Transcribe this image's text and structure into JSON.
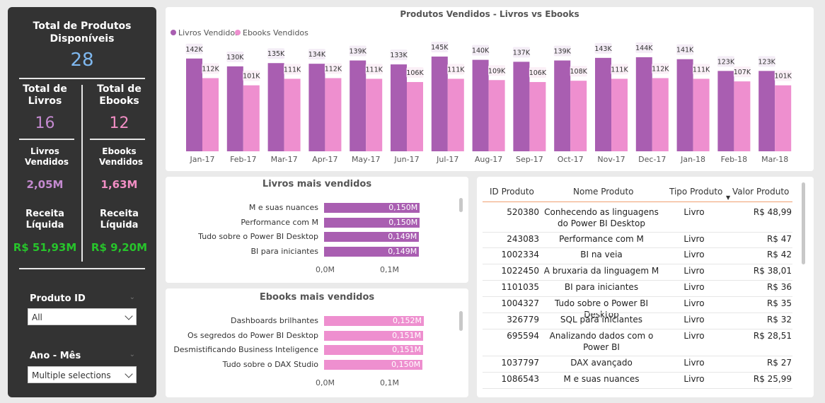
{
  "sidebar": {
    "total_title": "Total de Produtos Disponíveis",
    "total_value": "28",
    "livros_title": "Total de Livros",
    "livros_value": "16",
    "ebooks_title": "Total de Ebooks",
    "ebooks_value": "12",
    "livros_vendidos_title": "Livros Vendidos",
    "livros_vendidos_value": "2,05M",
    "ebooks_vendidos_title": "Ebooks Vendidos",
    "ebooks_vendidos_value": "1,63M",
    "receita1_title": "Receita Líquida",
    "receita1_value": "R$ 51,93M",
    "receita2_title": "Receita Líquida",
    "receita2_value": "R$ 9,20M",
    "filter1_label": "Produto ID",
    "filter1_value": "All",
    "filter2_label": "Ano - Mês",
    "filter2_value": "Multiple selections"
  },
  "colors": {
    "livros": "#a95eb1",
    "ebooks": "#ee8fcf",
    "total_value": "#7fb8ef",
    "livros_value": "#c48ad0",
    "ebooks_value": "#f28ec4",
    "receita_value": "#27c42b"
  },
  "column_chart": {
    "title": "Produtos Vendidos - Livros vs Ebooks",
    "legend": [
      "Livros Vendidos",
      "Ebooks Vendidos"
    ]
  },
  "chart_data": {
    "type": "bar",
    "title": "Produtos Vendidos - Livros vs Ebooks",
    "categories": [
      "Jan-17",
      "Feb-17",
      "Mar-17",
      "Apr-17",
      "May-17",
      "Jun-17",
      "Jul-17",
      "Aug-17",
      "Sep-17",
      "Oct-17",
      "Nov-17",
      "Dec-17",
      "Jan-18",
      "Feb-18",
      "Mar-18"
    ],
    "series": [
      {
        "name": "Livros Vendidos",
        "values": [
          142,
          130,
          135,
          134,
          139,
          133,
          145,
          140,
          137,
          139,
          143,
          144,
          141,
          123,
          123
        ],
        "labels": [
          "142K",
          "130K",
          "135K",
          "134K",
          "139K",
          "133K",
          "145K",
          "140K",
          "137K",
          "139K",
          "143K",
          "144K",
          "141K",
          "123K",
          "123K"
        ]
      },
      {
        "name": "Ebooks Vendidos",
        "values": [
          112,
          101,
          111,
          112,
          111,
          106,
          111,
          109,
          106,
          108,
          111,
          112,
          111,
          107,
          101
        ],
        "labels": [
          "112K",
          "101K",
          "111K",
          "112K",
          "111K",
          "106K",
          "111K",
          "109K",
          "106K",
          "108K",
          "111K",
          "112K",
          "111K",
          "107K",
          "101K"
        ]
      }
    ],
    "legend": "top-left"
  },
  "livros_top": {
    "title": "Livros mais vendidos",
    "items": [
      {
        "label": "M e suas nuances",
        "value": "0,150M",
        "v": 0.15
      },
      {
        "label": "Performance com M",
        "value": "0,150M",
        "v": 0.15
      },
      {
        "label": "Tudo sobre o Power BI Desktop",
        "value": "0,149M",
        "v": 0.149
      },
      {
        "label": "BI para iniciantes",
        "value": "0,149M",
        "v": 0.149
      }
    ],
    "axis": [
      "0,0M",
      "0,1M"
    ]
  },
  "ebooks_top": {
    "title": "Ebooks mais vendidos",
    "items": [
      {
        "label": "Dashboards brilhantes",
        "value": "0,152M",
        "v": 0.152
      },
      {
        "label": "Os segredos do Power BI Desktop",
        "value": "0,151M",
        "v": 0.151
      },
      {
        "label": "Desmistificando Business Inteligence",
        "value": "0,151M",
        "v": 0.151
      },
      {
        "label": "Tudo sobre o DAX Studio",
        "value": "0,150M",
        "v": 0.15
      }
    ],
    "axis": [
      "0,0M",
      "0,1M"
    ]
  },
  "table": {
    "headers": [
      "ID Produto",
      "Nome Produto",
      "Tipo Produto",
      "Valor Produto"
    ],
    "rows": [
      [
        "520380",
        "Conhecendo as linguagens do Power BI Desktop",
        "Livro",
        "R$ 48,99"
      ],
      [
        "243083",
        "Performance com M",
        "Livro",
        "R$ 47"
      ],
      [
        "1002334",
        "BI na veia",
        "Livro",
        "R$ 42"
      ],
      [
        "1022450",
        "A bruxaria da linguagem M",
        "Livro",
        "R$ 38,01"
      ],
      [
        "1101035",
        "BI para iniciantes",
        "Livro",
        "R$ 36"
      ],
      [
        "1004327",
        "Tudo sobre o Power BI Desktop",
        "Livro",
        "R$ 35"
      ],
      [
        "326779",
        "SQL para iniciantes",
        "Livro",
        "R$ 32"
      ],
      [
        "695594",
        "Analizando dados com o Power BI",
        "Livro",
        "R$ 28,51"
      ],
      [
        "1037797",
        "DAX avançado",
        "Livro",
        "R$ 27"
      ],
      [
        "1086543",
        "M e suas nuances",
        "Livro",
        "R$ 25,99"
      ]
    ]
  }
}
